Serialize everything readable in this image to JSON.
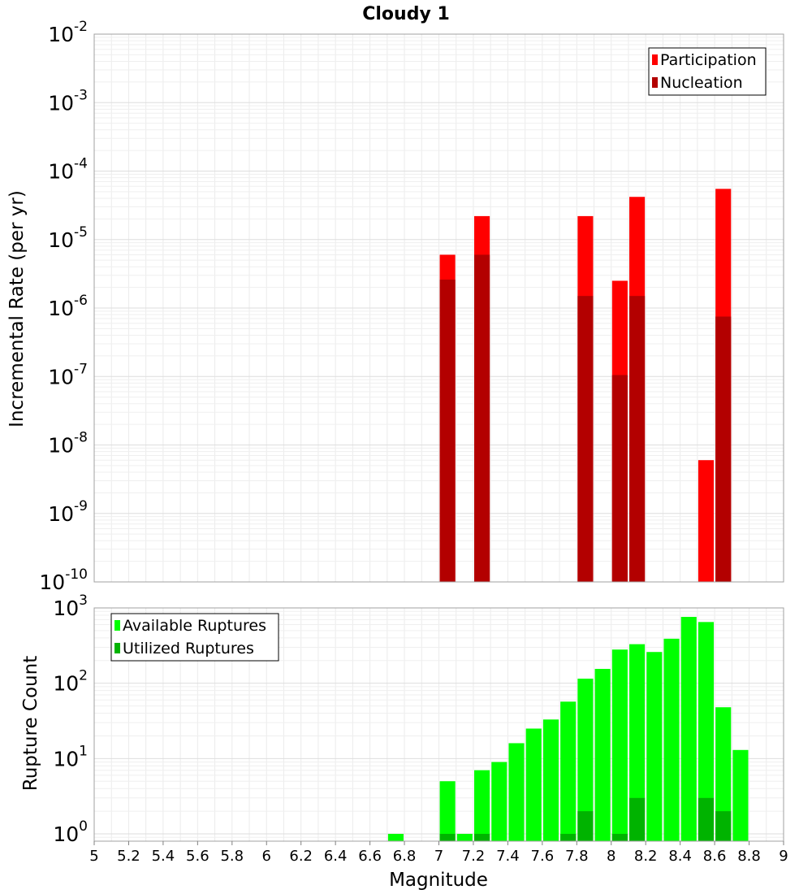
{
  "chart_data": [
    {
      "type": "bar",
      "title": "Cloudy 1",
      "xlabel": "",
      "ylabel": "Incremental Rate (per yr)",
      "yscale": "log",
      "ylim": [
        1e-10,
        0.01
      ],
      "xlim": [
        5,
        9
      ],
      "y_tick_exponents": [
        "-10",
        "-9",
        "-8",
        "-7",
        "-6",
        "-5",
        "-4",
        "-3",
        "-2"
      ],
      "bar_width": 0.09,
      "legend": {
        "position": "top-right",
        "entries": [
          "Participation",
          "Nucleation"
        ]
      },
      "colors": {
        "Participation": "#ff0000",
        "Nucleation": "#b30000"
      },
      "grid": true,
      "series": [
        {
          "name": "Participation",
          "points": [
            {
              "x": 7.05,
              "y": 6e-06
            },
            {
              "x": 7.25,
              "y": 2.2e-05
            },
            {
              "x": 7.85,
              "y": 2.2e-05
            },
            {
              "x": 8.05,
              "y": 2.5e-06
            },
            {
              "x": 8.15,
              "y": 4.2e-05
            },
            {
              "x": 8.55,
              "y": 6e-09
            },
            {
              "x": 8.65,
              "y": 5.5e-05
            }
          ]
        },
        {
          "name": "Nucleation",
          "points": [
            {
              "x": 7.05,
              "y": 2.6e-06
            },
            {
              "x": 7.25,
              "y": 6e-06
            },
            {
              "x": 7.85,
              "y": 1.5e-06
            },
            {
              "x": 8.05,
              "y": 1.05e-07
            },
            {
              "x": 8.15,
              "y": 1.5e-06
            },
            {
              "x": 8.65,
              "y": 7.5e-07
            }
          ]
        }
      ]
    },
    {
      "type": "bar",
      "title": "",
      "xlabel": "Magnitude",
      "ylabel": "Rupture Count",
      "yscale": "log",
      "ylim": [
        0.8,
        1000
      ],
      "xlim": [
        5,
        9
      ],
      "y_tick_exponents": [
        "0",
        "1",
        "2",
        "3"
      ],
      "x_ticks": [
        "5",
        "5.2",
        "5.4",
        "5.6",
        "5.8",
        "6",
        "6.2",
        "6.4",
        "6.6",
        "6.8",
        "7",
        "7.2",
        "7.4",
        "7.6",
        "7.8",
        "8",
        "8.2",
        "8.4",
        "8.6",
        "8.8",
        "9"
      ],
      "bar_width": 0.09,
      "legend": {
        "position": "top-left",
        "entries": [
          "Available Ruptures",
          "Utilized Ruptures"
        ]
      },
      "colors": {
        "Available Ruptures": "#00ff00",
        "Utilized Ruptures": "#00b300"
      },
      "grid": true,
      "series": [
        {
          "name": "Available Ruptures",
          "points": [
            {
              "x": 6.75,
              "y": 1
            },
            {
              "x": 7.05,
              "y": 5
            },
            {
              "x": 7.15,
              "y": 1
            },
            {
              "x": 7.25,
              "y": 7
            },
            {
              "x": 7.35,
              "y": 9
            },
            {
              "x": 7.45,
              "y": 16
            },
            {
              "x": 7.55,
              "y": 25
            },
            {
              "x": 7.65,
              "y": 33
            },
            {
              "x": 7.75,
              "y": 57
            },
            {
              "x": 7.85,
              "y": 115
            },
            {
              "x": 7.95,
              "y": 155
            },
            {
              "x": 8.05,
              "y": 280
            },
            {
              "x": 8.15,
              "y": 330
            },
            {
              "x": 8.25,
              "y": 260
            },
            {
              "x": 8.35,
              "y": 390
            },
            {
              "x": 8.45,
              "y": 760
            },
            {
              "x": 8.55,
              "y": 650
            },
            {
              "x": 8.65,
              "y": 48
            },
            {
              "x": 8.75,
              "y": 13
            }
          ]
        },
        {
          "name": "Utilized Ruptures",
          "points": [
            {
              "x": 7.05,
              "y": 1
            },
            {
              "x": 7.25,
              "y": 1
            },
            {
              "x": 7.75,
              "y": 1
            },
            {
              "x": 7.85,
              "y": 2
            },
            {
              "x": 8.05,
              "y": 1
            },
            {
              "x": 8.15,
              "y": 3
            },
            {
              "x": 8.55,
              "y": 3
            },
            {
              "x": 8.65,
              "y": 2
            }
          ]
        }
      ]
    }
  ]
}
